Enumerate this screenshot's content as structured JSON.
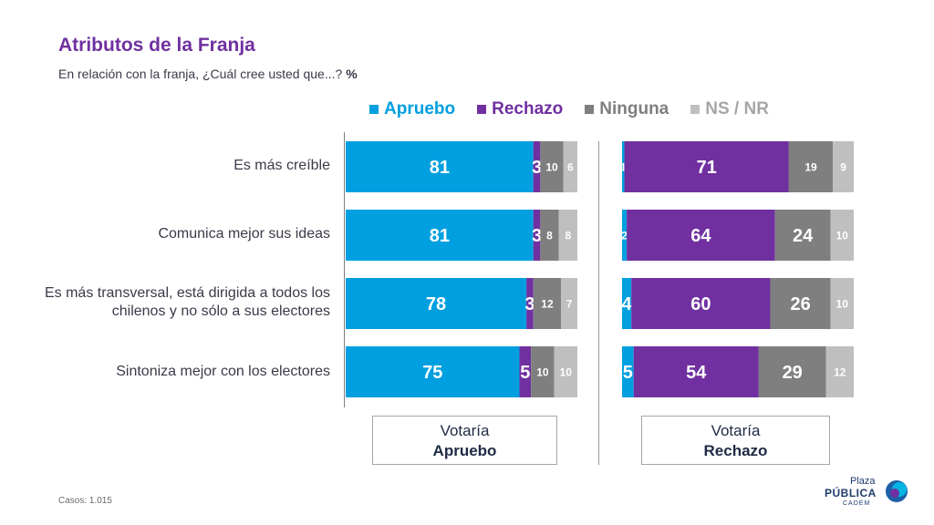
{
  "header": {
    "title": "Atributos de la Franja",
    "subtitle": "En relación con la franja, ¿Cuál cree usted que...?",
    "unit": "%"
  },
  "legend": [
    {
      "label": "Apruebo",
      "color": "#009fdf"
    },
    {
      "label": "Rechazo",
      "color": "#7030a0"
    },
    {
      "label": "Ninguna",
      "color": "#7f7f7f"
    },
    {
      "label": "NS / NR",
      "color": "#bfbfbf"
    }
  ],
  "groups": {
    "left": {
      "line1": "Votaría",
      "line2": "Apruebo"
    },
    "right": {
      "line1": "Votaría",
      "line2": "Rechazo"
    }
  },
  "footer": {
    "casos_label": "Casos:",
    "casos_value": "1.015"
  },
  "logo": {
    "line1": "Plaza",
    "line2": "PÚBLICA",
    "line3": "CADEM"
  },
  "chart_data": [
    {
      "type": "bar",
      "orientation": "horizontal",
      "stacked": true,
      "group": "Votaría Apruebo",
      "categories": [
        "Es más creíble",
        "Comunica mejor sus ideas",
        "Es más transversal, está dirigida a todos los chilenos y no sólo a sus electores",
        "Sintoniza mejor con los electores"
      ],
      "series": [
        {
          "name": "Apruebo",
          "values": [
            81,
            81,
            78,
            75
          ]
        },
        {
          "name": "Rechazo",
          "values": [
            3,
            3,
            3,
            5
          ]
        },
        {
          "name": "Ninguna",
          "values": [
            10,
            8,
            12,
            10
          ]
        },
        {
          "name": "NS / NR",
          "values": [
            6,
            8,
            7,
            10
          ]
        }
      ],
      "xlim": [
        0,
        100
      ]
    },
    {
      "type": "bar",
      "orientation": "horizontal",
      "stacked": true,
      "group": "Votaría Rechazo",
      "categories": [
        "Es más creíble",
        "Comunica mejor sus ideas",
        "Es más transversal, está dirigida a todos los chilenos y no sólo a sus electores",
        "Sintoniza mejor con los electores"
      ],
      "series": [
        {
          "name": "Apruebo",
          "values": [
            1,
            2,
            4,
            5
          ]
        },
        {
          "name": "Rechazo",
          "values": [
            71,
            64,
            60,
            54
          ]
        },
        {
          "name": "Ninguna",
          "values": [
            19,
            24,
            26,
            29
          ]
        },
        {
          "name": "NS / NR",
          "values": [
            9,
            10,
            10,
            12
          ]
        }
      ],
      "xlim": [
        0,
        100
      ]
    }
  ]
}
